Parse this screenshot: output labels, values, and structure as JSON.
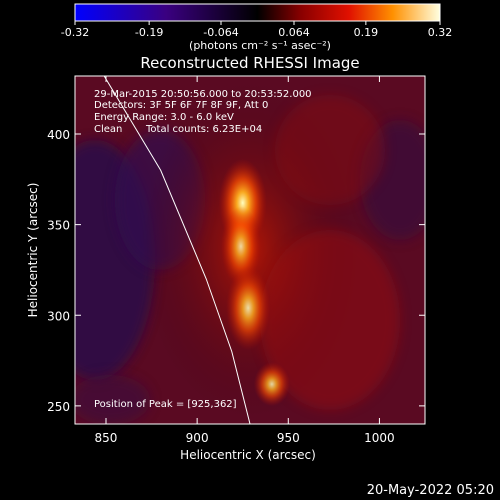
{
  "chart_data": {
    "type": "heatmap",
    "title": "Reconstructed RHESSI Image",
    "colorbar": {
      "min": -0.32,
      "max": 0.32,
      "ticks": [
        "-0.32",
        "-0.19",
        "-0.064",
        "0.064",
        "0.19",
        "0.32"
      ],
      "tick_values": [
        -0.32,
        -0.19,
        -0.064,
        0.064,
        0.19,
        0.32
      ],
      "unit_label": "(photons cm⁻² s⁻¹ asec⁻²)"
    },
    "xlabel": "Heliocentric X (arcsec)",
    "ylabel": "Heliocentric Y (arcsec)",
    "xlim": [
      833,
      1025
    ],
    "ylim": [
      240,
      432
    ],
    "xticks": [
      850,
      900,
      950,
      1000
    ],
    "yticks": [
      250,
      300,
      350,
      400
    ],
    "annotations": {
      "time_range": "29-Mar-2015 20:50:56.000 to 20:53:52.000",
      "detectors": "Detectors: 3F 5F 6F 7F 8F 9F, Att 0",
      "energy": "Energy Range: 3.0 - 6.0 keV",
      "method": "Clean",
      "counts": "Total counts: 6.23E+04",
      "peak": "Position of Peak = [925,362]"
    },
    "sources": [
      {
        "x": 925,
        "y": 362,
        "peak": 0.32
      },
      {
        "x": 924,
        "y": 338,
        "peak": 0.2
      },
      {
        "x": 928,
        "y": 304,
        "peak": 0.22
      },
      {
        "x": 941,
        "y": 262,
        "peak": 0.2
      }
    ],
    "limb_curve": [
      [
        849,
        432
      ],
      [
        880,
        380
      ],
      [
        905,
        320
      ],
      [
        919,
        280
      ],
      [
        929,
        240
      ]
    ],
    "footer_date": "20-May-2022 05:20"
  }
}
